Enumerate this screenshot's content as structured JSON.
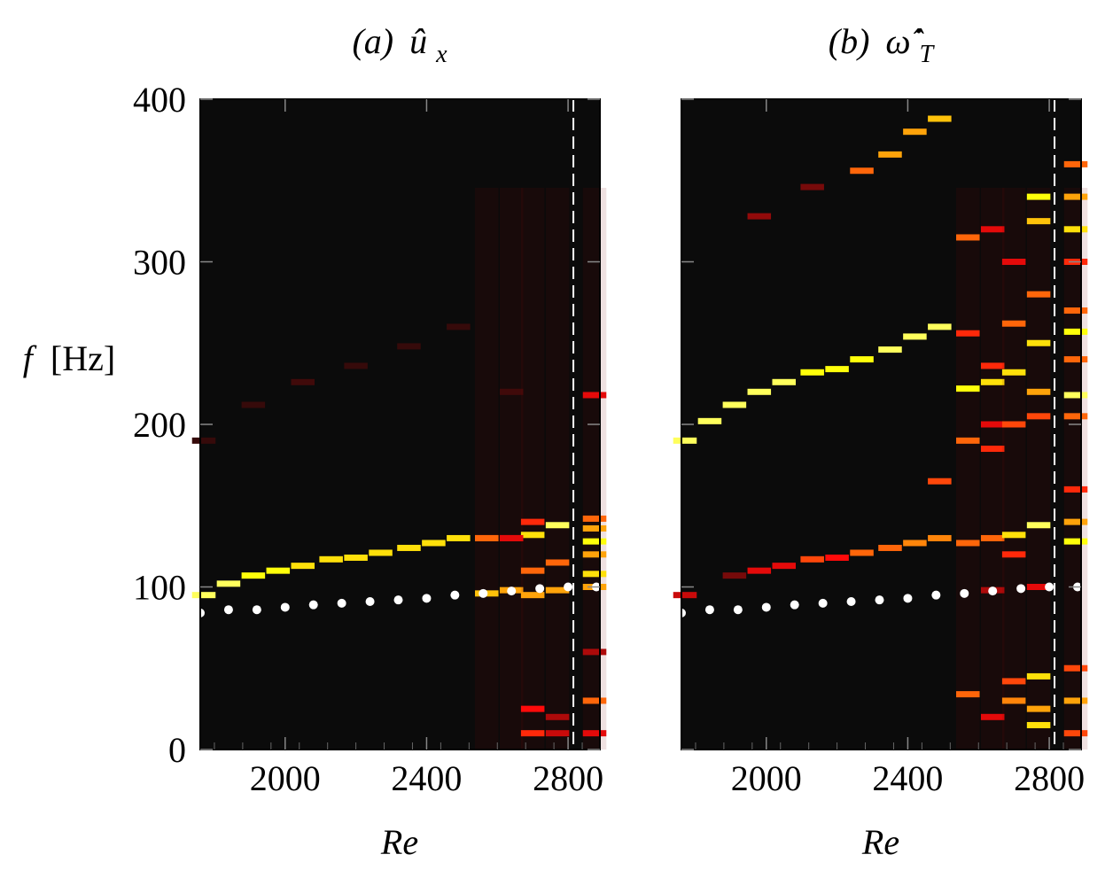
{
  "chart_data": [
    {
      "type": "heatmap",
      "panel": "a",
      "title": {
        "tag": "(a)",
        "symbol": "û",
        "subscript": "x"
      },
      "xlabel": "Re",
      "ylabel": {
        "symbol": "f",
        "unit": "[Hz]"
      },
      "xlim": [
        1760,
        2890
      ],
      "ylim": [
        0,
        400
      ],
      "xticks": [
        2000,
        2400,
        2800
      ],
      "yticks": [
        0,
        100,
        200,
        300,
        400
      ],
      "re_columns": [
        1770,
        1840,
        1910,
        1980,
        2050,
        2130,
        2200,
        2270,
        2350,
        2420,
        2490,
        2570,
        2640,
        2700,
        2770,
        2820,
        2875
      ],
      "dominant_frequency": [
        {
          "re": 1770,
          "f": 95,
          "intensity": 0.9
        },
        {
          "re": 1840,
          "f": 102,
          "intensity": 0.9
        },
        {
          "re": 1910,
          "f": 107,
          "intensity": 0.85
        },
        {
          "re": 1980,
          "f": 110,
          "intensity": 0.85
        },
        {
          "re": 2050,
          "f": 113,
          "intensity": 0.8
        },
        {
          "re": 2130,
          "f": 117,
          "intensity": 0.8
        },
        {
          "re": 2200,
          "f": 118,
          "intensity": 0.8
        },
        {
          "re": 2270,
          "f": 121,
          "intensity": 0.8
        },
        {
          "re": 2350,
          "f": 124,
          "intensity": 0.8
        },
        {
          "re": 2420,
          "f": 127,
          "intensity": 0.8
        },
        {
          "re": 2490,
          "f": 130,
          "intensity": 0.8
        },
        {
          "re": 2570,
          "f": 130,
          "intensity": 0.6
        },
        {
          "re": 2640,
          "f": 130,
          "intensity": 0.4
        }
      ],
      "harmonic_frequency": [
        {
          "re": 1770,
          "f": 190,
          "intensity": 0.08
        },
        {
          "re": 1910,
          "f": 212,
          "intensity": 0.08
        },
        {
          "re": 2050,
          "f": 226,
          "intensity": 0.1
        },
        {
          "re": 2200,
          "f": 236,
          "intensity": 0.08
        },
        {
          "re": 2350,
          "f": 248,
          "intensity": 0.08
        },
        {
          "re": 2490,
          "f": 260,
          "intensity": 0.08
        }
      ],
      "broadband_columns": [
        {
          "re": 2570,
          "bands": [
            {
              "f": 96,
              "intensity": 0.75
            },
            {
              "f": 130,
              "intensity": 0.6
            }
          ]
        },
        {
          "re": 2640,
          "bands": [
            {
              "f": 98,
              "intensity": 0.7
            },
            {
              "f": 130,
              "intensity": 0.4
            },
            {
              "f": 220,
              "intensity": 0.1
            }
          ]
        },
        {
          "re": 2700,
          "bands": [
            {
              "f": 10,
              "intensity": 0.5
            },
            {
              "f": 25,
              "intensity": 0.45
            },
            {
              "f": 95,
              "intensity": 0.7
            },
            {
              "f": 110,
              "intensity": 0.6
            },
            {
              "f": 132,
              "intensity": 0.8
            },
            {
              "f": 140,
              "intensity": 0.5
            }
          ]
        },
        {
          "re": 2770,
          "bands": [
            {
              "f": 10,
              "intensity": 0.35
            },
            {
              "f": 20,
              "intensity": 0.3
            },
            {
              "f": 98,
              "intensity": 0.7
            },
            {
              "f": 115,
              "intensity": 0.6
            },
            {
              "f": 138,
              "intensity": 0.9
            }
          ]
        },
        {
          "re": 2875,
          "bands": [
            {
              "f": 10,
              "intensity": 0.4
            },
            {
              "f": 30,
              "intensity": 0.6
            },
            {
              "f": 60,
              "intensity": 0.3
            },
            {
              "f": 100,
              "intensity": 0.7
            },
            {
              "f": 108,
              "intensity": 0.8
            },
            {
              "f": 120,
              "intensity": 0.7
            },
            {
              "f": 128,
              "intensity": 0.85
            },
            {
              "f": 136,
              "intensity": 0.7
            },
            {
              "f": 142,
              "intensity": 0.6
            },
            {
              "f": 218,
              "intensity": 0.4
            }
          ]
        }
      ],
      "marker_series": {
        "type": "scatter",
        "re": [
          1760,
          1840,
          1920,
          2000,
          2080,
          2160,
          2240,
          2320,
          2400,
          2480,
          2560,
          2640,
          2720,
          2800,
          2880
        ],
        "f": [
          84,
          86,
          86,
          87.5,
          89,
          90,
          91,
          92,
          93,
          95,
          96,
          97.5,
          99,
          100,
          100
        ]
      },
      "reference_line": {
        "re": 2815,
        "style": "dashed"
      }
    },
    {
      "type": "heatmap",
      "panel": "b",
      "title": {
        "tag": "(b)",
        "symbol": "ω̂̇",
        "subscript": "T"
      },
      "xlabel": "Re",
      "xlim": [
        1760,
        2890
      ],
      "ylim": [
        0,
        400
      ],
      "xticks": [
        2000,
        2400,
        2800
      ],
      "yticks": [
        0,
        100,
        200,
        300,
        400
      ],
      "re_columns": [
        1770,
        1840,
        1910,
        1980,
        2050,
        2130,
        2200,
        2270,
        2350,
        2420,
        2490,
        2570,
        2640,
        2700,
        2770,
        2820,
        2875
      ],
      "fundamental_frequency": [
        {
          "re": 1770,
          "f": 95,
          "intensity": 0.35
        },
        {
          "re": 1910,
          "f": 107,
          "intensity": 0.2
        },
        {
          "re": 1980,
          "f": 110,
          "intensity": 0.4
        },
        {
          "re": 2050,
          "f": 113,
          "intensity": 0.4
        },
        {
          "re": 2130,
          "f": 117,
          "intensity": 0.55
        },
        {
          "re": 2200,
          "f": 118,
          "intensity": 0.45
        },
        {
          "re": 2270,
          "f": 121,
          "intensity": 0.6
        },
        {
          "re": 2350,
          "f": 124,
          "intensity": 0.6
        },
        {
          "re": 2420,
          "f": 127,
          "intensity": 0.65
        },
        {
          "re": 2490,
          "f": 130,
          "intensity": 0.65
        }
      ],
      "harmonic_frequency": [
        {
          "re": 1770,
          "f": 190,
          "intensity": 0.9
        },
        {
          "re": 1840,
          "f": 202,
          "intensity": 0.9
        },
        {
          "re": 1910,
          "f": 212,
          "intensity": 0.9
        },
        {
          "re": 1980,
          "f": 220,
          "intensity": 0.9
        },
        {
          "re": 2050,
          "f": 226,
          "intensity": 0.9
        },
        {
          "re": 2130,
          "f": 232,
          "intensity": 0.85
        },
        {
          "re": 2200,
          "f": 234,
          "intensity": 0.85
        },
        {
          "re": 2270,
          "f": 240,
          "intensity": 0.85
        },
        {
          "re": 2350,
          "f": 246,
          "intensity": 0.9
        },
        {
          "re": 2420,
          "f": 254,
          "intensity": 0.9
        },
        {
          "re": 2490,
          "f": 260,
          "intensity": 0.9
        }
      ],
      "third_harmonic": [
        {
          "re": 1980,
          "f": 328,
          "intensity": 0.25
        },
        {
          "re": 2130,
          "f": 346,
          "intensity": 0.2
        },
        {
          "re": 2270,
          "f": 356,
          "intensity": 0.6
        },
        {
          "re": 2350,
          "f": 366,
          "intensity": 0.7
        },
        {
          "re": 2420,
          "f": 380,
          "intensity": 0.7
        },
        {
          "re": 2490,
          "f": 388,
          "intensity": 0.75
        },
        {
          "re": 2490,
          "f": 165,
          "intensity": 0.55
        }
      ],
      "broadband_columns": [
        {
          "re": 2570,
          "bands": [
            {
              "f": 34,
              "intensity": 0.6
            },
            {
              "f": 127,
              "intensity": 0.6
            },
            {
              "f": 190,
              "intensity": 0.6
            },
            {
              "f": 222,
              "intensity": 0.85
            },
            {
              "f": 256,
              "intensity": 0.5
            },
            {
              "f": 315,
              "intensity": 0.6
            }
          ]
        },
        {
          "re": 2640,
          "bands": [
            {
              "f": 20,
              "intensity": 0.4
            },
            {
              "f": 98,
              "intensity": 0.3
            },
            {
              "f": 130,
              "intensity": 0.6
            },
            {
              "f": 185,
              "intensity": 0.5
            },
            {
              "f": 200,
              "intensity": 0.4
            },
            {
              "f": 226,
              "intensity": 0.8
            },
            {
              "f": 236,
              "intensity": 0.5
            },
            {
              "f": 320,
              "intensity": 0.4
            }
          ]
        },
        {
          "re": 2700,
          "bands": [
            {
              "f": 30,
              "intensity": 0.65
            },
            {
              "f": 42,
              "intensity": 0.55
            },
            {
              "f": 120,
              "intensity": 0.5
            },
            {
              "f": 132,
              "intensity": 0.8
            },
            {
              "f": 200,
              "intensity": 0.55
            },
            {
              "f": 232,
              "intensity": 0.8
            },
            {
              "f": 262,
              "intensity": 0.6
            },
            {
              "f": 300,
              "intensity": 0.4
            }
          ]
        },
        {
          "re": 2770,
          "bands": [
            {
              "f": 15,
              "intensity": 0.8
            },
            {
              "f": 25,
              "intensity": 0.7
            },
            {
              "f": 45,
              "intensity": 0.8
            },
            {
              "f": 100,
              "intensity": 0.4
            },
            {
              "f": 138,
              "intensity": 0.9
            },
            {
              "f": 205,
              "intensity": 0.55
            },
            {
              "f": 220,
              "intensity": 0.7
            },
            {
              "f": 250,
              "intensity": 0.8
            },
            {
              "f": 280,
              "intensity": 0.6
            },
            {
              "f": 325,
              "intensity": 0.75
            },
            {
              "f": 340,
              "intensity": 0.85
            }
          ]
        },
        {
          "re": 2875,
          "bands": [
            {
              "f": 10,
              "intensity": 0.55
            },
            {
              "f": 30,
              "intensity": 0.7
            },
            {
              "f": 50,
              "intensity": 0.55
            },
            {
              "f": 128,
              "intensity": 0.85
            },
            {
              "f": 140,
              "intensity": 0.7
            },
            {
              "f": 160,
              "intensity": 0.5
            },
            {
              "f": 205,
              "intensity": 0.6
            },
            {
              "f": 218,
              "intensity": 0.9
            },
            {
              "f": 240,
              "intensity": 0.6
            },
            {
              "f": 257,
              "intensity": 0.85
            },
            {
              "f": 270,
              "intensity": 0.6
            },
            {
              "f": 300,
              "intensity": 0.5
            },
            {
              "f": 320,
              "intensity": 0.8
            },
            {
              "f": 340,
              "intensity": 0.7
            },
            {
              "f": 360,
              "intensity": 0.6
            }
          ]
        }
      ],
      "marker_series": {
        "type": "scatter",
        "re": [
          1760,
          1840,
          1920,
          2000,
          2080,
          2160,
          2240,
          2320,
          2400,
          2480,
          2560,
          2640,
          2720,
          2800,
          2880
        ],
        "f": [
          84,
          86,
          86,
          87.5,
          89,
          90,
          91,
          92,
          93,
          95,
          96,
          97.5,
          99,
          100,
          100
        ]
      },
      "reference_line": {
        "re": 2815,
        "style": "dashed"
      }
    }
  ]
}
